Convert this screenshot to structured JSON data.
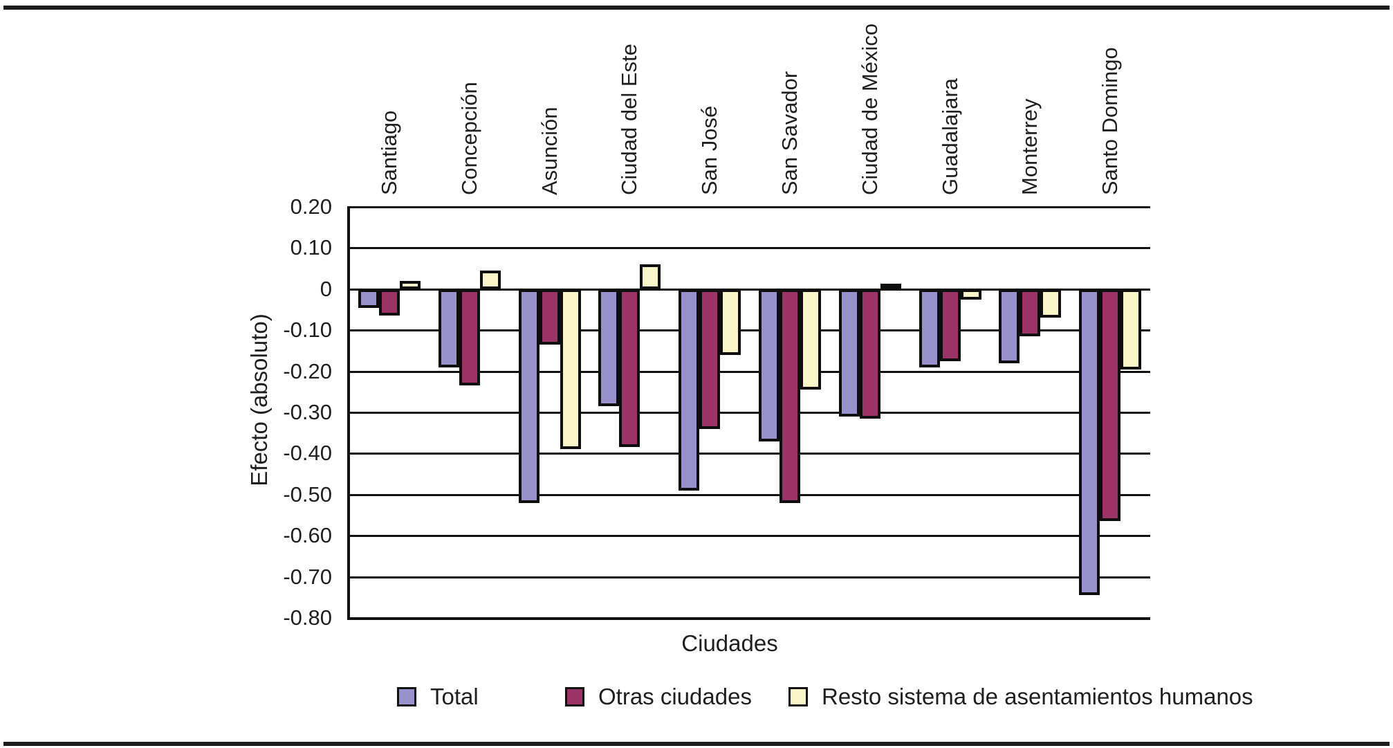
{
  "chart_data": {
    "type": "bar",
    "title": "",
    "xlabel": "Ciudades",
    "ylabel": "Efecto (absoluto)",
    "categories": [
      "Santiago",
      "Concepción",
      "Asunción",
      "Ciudad del Este",
      "San José",
      "San Savador",
      "Ciudad de México",
      "Guadalajara",
      "Monterrey",
      "Santo Domingo"
    ],
    "series": [
      {
        "name": "Total",
        "color": "#9891CB",
        "values": [
          -0.045,
          -0.19,
          -0.52,
          -0.285,
          -0.49,
          -0.37,
          -0.31,
          -0.19,
          -0.18,
          -0.745
        ]
      },
      {
        "name": "Otras ciudades",
        "color": "#9C3366",
        "values": [
          -0.065,
          -0.235,
          -0.135,
          -0.385,
          -0.34,
          -0.52,
          -0.315,
          -0.175,
          -0.115,
          -0.565
        ]
      },
      {
        "name": "Resto sistema de asentamientos humanos",
        "color": "#FBF6C9",
        "values": [
          0.02,
          0.045,
          -0.39,
          0.06,
          -0.16,
          -0.245,
          0.005,
          -0.025,
          -0.07,
          -0.195
        ]
      }
    ],
    "ylim": [
      -0.8,
      0.2
    ],
    "yticks": [
      {
        "value": 0.2,
        "label": "0.20"
      },
      {
        "value": 0.1,
        "label": "0.10"
      },
      {
        "value": 0.0,
        "label": "0"
      },
      {
        "value": -0.1,
        "label": "-0.10"
      },
      {
        "value": -0.2,
        "label": "-0.20"
      },
      {
        "value": -0.3,
        "label": "-0.30"
      },
      {
        "value": -0.4,
        "label": "-0.40"
      },
      {
        "value": -0.5,
        "label": "-0.50"
      },
      {
        "value": -0.6,
        "label": "-0.60"
      },
      {
        "value": -0.7,
        "label": "-0.70"
      },
      {
        "value": -0.8,
        "label": "-0.80"
      }
    ],
    "grid": "horizontal",
    "legend_position": "bottom",
    "bar_outline_color": "#0d0d0d"
  }
}
